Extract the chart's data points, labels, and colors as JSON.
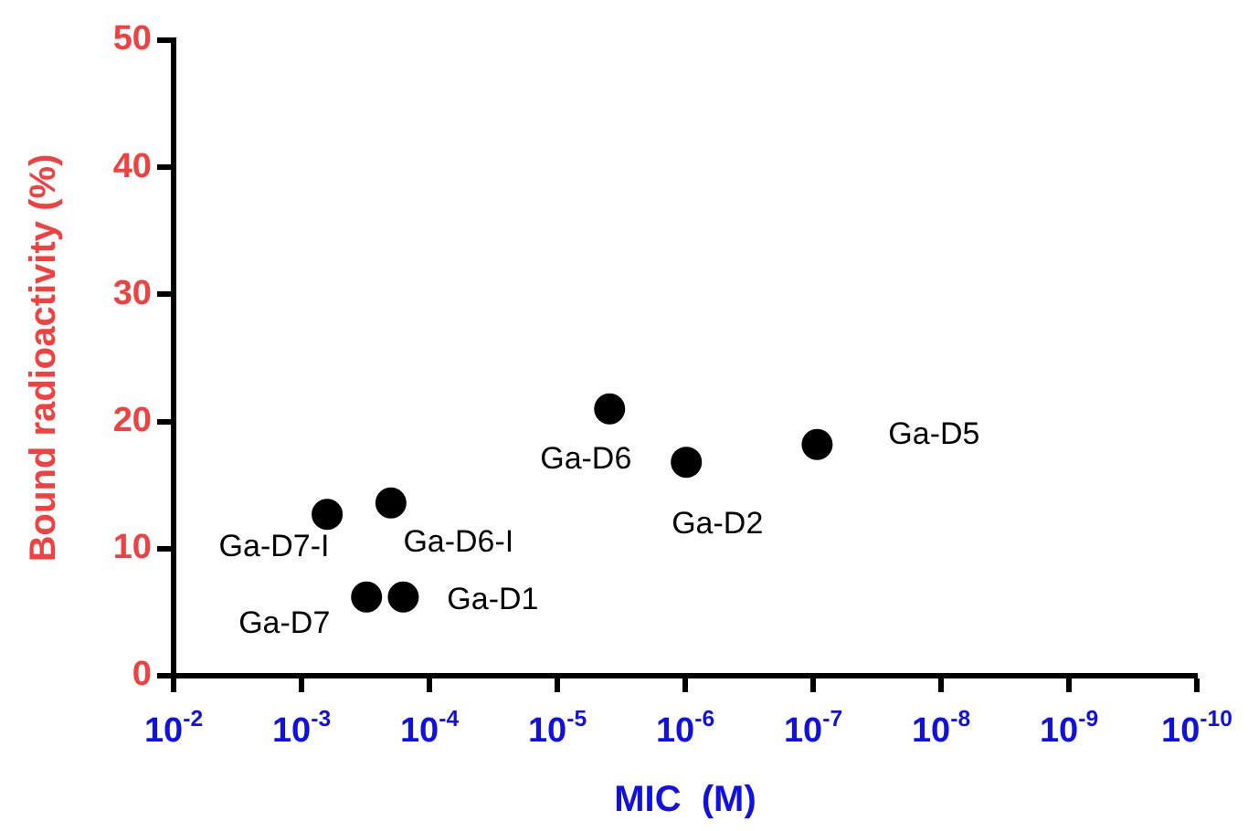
{
  "chart_data": {
    "type": "scatter",
    "xlabel": "MIC  (M)",
    "ylabel": "Bound radioactivity (%)",
    "x": [
      0.00063,
      0.0002,
      0.00031,
      0.00016,
      3.9e-06,
      9.8e-07,
      9.3e-08
    ],
    "values": [
      12.7,
      13.6,
      6.2,
      6.2,
      21.0,
      16.8,
      18.2
    ],
    "color": "#000000",
    "marker": "circle",
    "log": "x",
    "grid": false,
    "legend": false,
    "xlim": [
      0.01,
      1e-10
    ],
    "xticks": [
      {
        "value": 0.01,
        "label": "10$^{-2}$"
      },
      {
        "value": 0.001,
        "label": "10$^{-3}$"
      },
      {
        "value": 0.0001,
        "label": "10$^{-4}$"
      },
      {
        "value": 1e-05,
        "label": "10$^{-5}$"
      },
      {
        "value": 1e-06,
        "label": "10$^{-6}$"
      },
      {
        "value": 1e-07,
        "label": "10$^{-7}$"
      },
      {
        "value": 1e-08,
        "label": "10$^{-8}$"
      },
      {
        "value": 1e-09,
        "label": "10$^{-9}$"
      },
      {
        "value": 1e-10,
        "label": "10$^{-10}$"
      }
    ],
    "ylim": [
      0,
      50
    ],
    "yticks": [
      0,
      10,
      20,
      30,
      40,
      50
    ],
    "annotations": [
      {
        "text": "Ga-D7-I",
        "x": 0.00063,
        "y": 12.7
      },
      {
        "text": "Ga-D6-I",
        "x": 0.0002,
        "y": 13.6
      },
      {
        "text": "Ga-D7",
        "x": 0.00031,
        "y": 6.2
      },
      {
        "text": "Ga-D1",
        "x": 0.00016,
        "y": 6.2
      },
      {
        "text": "Ga-D6",
        "x": 3.9e-06,
        "y": 21.0
      },
      {
        "text": "Ga-D2",
        "x": 9.8e-07,
        "y": 16.8
      },
      {
        "text": "Ga-D5",
        "x": 9.3e-08,
        "y": 18.2
      }
    ]
  }
}
